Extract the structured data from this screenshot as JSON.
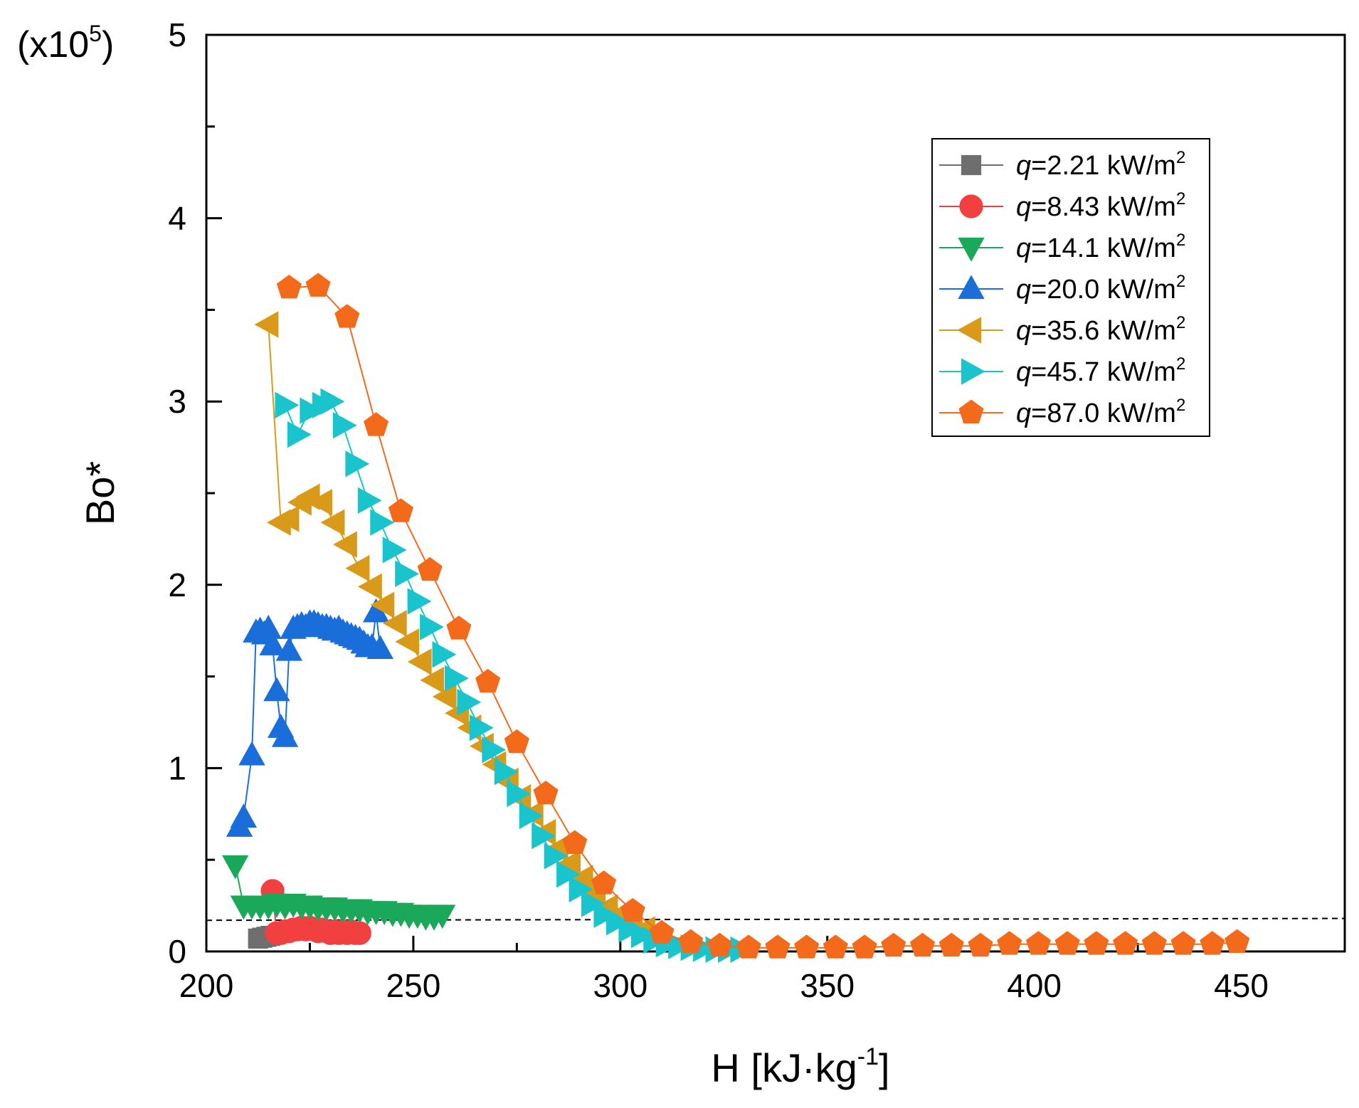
{
  "chart_data": {
    "type": "line",
    "title": "",
    "xlabel": "H [kJ·kg",
    "xlabel_sup": "-1",
    "xlabel_end": "]",
    "ylabel": "Bo*",
    "y_multiplier": "(x10",
    "y_multiplier_sup": "5",
    "y_multiplier_end": ")",
    "xlim": [
      200,
      475
    ],
    "ylim": [
      0,
      5
    ],
    "xticks": [
      200,
      250,
      300,
      350,
      400,
      450
    ],
    "yticks": [
      0,
      1,
      2,
      3,
      4,
      5
    ],
    "grid": false,
    "legend_position": "top-right",
    "reference_line": {
      "style": "dashed",
      "y_start": 0.17,
      "y_end": 0.18,
      "x_start": 200,
      "x_end": 475
    },
    "series": [
      {
        "name": "q=2.21 kW/m2",
        "legend_q": "q",
        "legend_rest": "=2.21 kW/m",
        "legend_sup": "2",
        "color": "#6e6e6e",
        "marker": "square",
        "x": [
          212.5,
          213.5,
          214.5,
          215.5
        ],
        "y": [
          0.07,
          0.075,
          0.08,
          0.085
        ]
      },
      {
        "name": "q=8.43 kW/m2",
        "legend_q": "q",
        "legend_rest": "=8.43 kW/m",
        "legend_sup": "2",
        "color": "#f24040",
        "marker": "circle",
        "x": [
          216,
          217,
          218,
          219,
          220,
          221,
          222,
          223,
          224,
          225,
          226,
          227,
          228,
          229,
          230,
          231,
          232,
          233,
          234,
          235,
          236,
          237
        ],
        "y": [
          0.33,
          0.1,
          0.1,
          0.11,
          0.11,
          0.12,
          0.12,
          0.13,
          0.12,
          0.13,
          0.12,
          0.11,
          0.12,
          0.11,
          0.1,
          0.11,
          0.1,
          0.11,
          0.1,
          0.11,
          0.1,
          0.1
        ]
      },
      {
        "name": "q=14.1 kW/m2",
        "legend_q": "q",
        "legend_rest": "=14.1 kW/m",
        "legend_sup": "2",
        "color": "#1aa95a",
        "marker": "triangle-down",
        "x": [
          207,
          209,
          211,
          213,
          215,
          217,
          219,
          221,
          223,
          225,
          227,
          229,
          231,
          233,
          235,
          237,
          239,
          241,
          243,
          245,
          247,
          249,
          251,
          253,
          255,
          257
        ],
        "y": [
          0.47,
          0.25,
          0.25,
          0.25,
          0.25,
          0.26,
          0.25,
          0.26,
          0.25,
          0.25,
          0.24,
          0.24,
          0.24,
          0.23,
          0.23,
          0.23,
          0.22,
          0.22,
          0.22,
          0.21,
          0.21,
          0.2,
          0.2,
          0.19,
          0.19,
          0.2
        ]
      },
      {
        "name": "q=20.0 kW/m2",
        "legend_q": "q",
        "legend_rest": "=20.0 kW/m",
        "legend_sup": "2",
        "color": "#1a6ed9",
        "marker": "triangle-up",
        "x": [
          208,
          209,
          211,
          212,
          213,
          214,
          215,
          216,
          217,
          218,
          219,
          220,
          221,
          222,
          223,
          224,
          225,
          226,
          227,
          228,
          229,
          230,
          231,
          232,
          233,
          234,
          235,
          236,
          237,
          238,
          239,
          240,
          241,
          242
        ],
        "y": [
          0.68,
          0.73,
          1.07,
          1.74,
          1.75,
          1.73,
          1.76,
          1.67,
          1.42,
          1.22,
          1.17,
          1.64,
          1.76,
          1.77,
          1.78,
          1.77,
          1.79,
          1.79,
          1.78,
          1.77,
          1.77,
          1.76,
          1.75,
          1.76,
          1.74,
          1.73,
          1.72,
          1.71,
          1.7,
          1.68,
          1.66,
          1.66,
          1.85,
          1.65
        ]
      },
      {
        "name": "q=35.6 kW/m2",
        "legend_q": "q",
        "legend_rest": "=35.6 kW/m",
        "legend_sup": "2",
        "color": "#d99a1a",
        "marker": "triangle-left",
        "x": [
          215,
          218,
          220,
          223,
          225,
          228,
          231,
          234,
          237,
          240,
          243,
          246,
          249,
          252,
          255,
          258,
          261,
          264,
          267,
          270,
          273,
          276,
          279,
          282,
          285,
          288,
          291,
          294,
          297,
          300,
          303,
          306
        ],
        "y": [
          3.42,
          2.34,
          2.36,
          2.45,
          2.48,
          2.45,
          2.34,
          2.22,
          2.09,
          1.99,
          1.89,
          1.79,
          1.69,
          1.58,
          1.48,
          1.39,
          1.3,
          1.22,
          1.12,
          1.02,
          0.93,
          0.84,
          0.75,
          0.65,
          0.56,
          0.48,
          0.4,
          0.32,
          0.24,
          0.2,
          0.16,
          0.12
        ]
      },
      {
        "name": "q=45.7 kW/m2",
        "legend_q": "q",
        "legend_rest": "=45.7 kW/m",
        "legend_sup": "2",
        "color": "#1ac4cc",
        "marker": "triangle-right",
        "x": [
          219,
          222,
          225,
          228,
          230,
          233,
          236,
          239,
          242,
          245,
          248,
          251,
          254,
          257,
          260,
          263,
          266,
          269,
          272,
          275,
          278,
          281,
          284,
          287,
          290,
          293,
          296,
          299,
          302,
          305,
          308,
          311,
          314,
          317,
          320,
          323,
          326,
          329
        ],
        "y": [
          2.98,
          2.82,
          2.95,
          2.98,
          3.0,
          2.87,
          2.66,
          2.46,
          2.34,
          2.19,
          2.06,
          1.91,
          1.77,
          1.62,
          1.49,
          1.36,
          1.22,
          1.1,
          0.98,
          0.86,
          0.74,
          0.63,
          0.52,
          0.42,
          0.34,
          0.26,
          0.2,
          0.16,
          0.12,
          0.09,
          0.06,
          0.04,
          0.03,
          0.02,
          0.015,
          0.01,
          0.01,
          0.01
        ]
      },
      {
        "name": "q=87.0 kW/m2",
        "legend_q": "q",
        "legend_rest": "=87.0 kW/m",
        "legend_sup": "2",
        "color": "#f26a1a",
        "marker": "pentagon",
        "x": [
          220,
          227,
          234,
          241,
          247,
          254,
          261,
          268,
          275,
          282,
          289,
          296,
          303,
          310,
          317,
          324,
          331,
          338,
          345,
          352,
          359,
          366,
          373,
          380,
          387,
          394,
          401,
          408,
          415,
          422,
          429,
          436,
          443,
          449
        ],
        "y": [
          3.62,
          3.63,
          3.46,
          2.87,
          2.4,
          2.08,
          1.76,
          1.47,
          1.14,
          0.86,
          0.59,
          0.37,
          0.22,
          0.1,
          0.05,
          0.03,
          0.02,
          0.02,
          0.02,
          0.02,
          0.02,
          0.03,
          0.03,
          0.03,
          0.03,
          0.04,
          0.04,
          0.04,
          0.04,
          0.04,
          0.04,
          0.04,
          0.04,
          0.05
        ]
      }
    ]
  }
}
